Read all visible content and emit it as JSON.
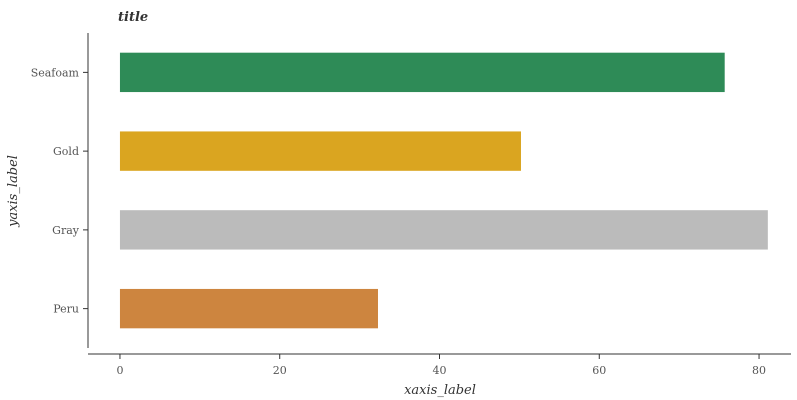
{
  "chart_data": {
    "type": "bar",
    "orientation": "horizontal",
    "title": "title",
    "xlabel": "xaxis_label",
    "ylabel": "yaxis_label",
    "xlim": [
      -4,
      84
    ],
    "x_ticks": [
      0,
      20,
      40,
      60,
      80
    ],
    "x_tick_labels": [
      "0",
      "20",
      "40",
      "60",
      "80"
    ],
    "grid": false,
    "categories": [
      "Peru",
      "Gray",
      "Gold",
      "Seafoam"
    ],
    "values": [
      32.3,
      81.1,
      50.2,
      75.7
    ],
    "colors": [
      "#cd853f",
      "#bbbbbb",
      "#daa520",
      "#2e8b57"
    ]
  }
}
